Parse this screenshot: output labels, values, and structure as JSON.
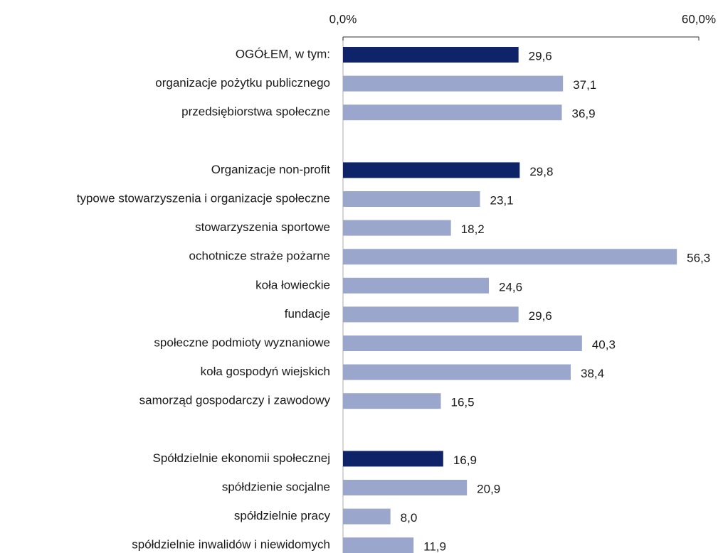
{
  "chart_data": {
    "type": "barh",
    "categories": [
      "OGÓŁEM, w tym:",
      "organizacje pożytku publicznego",
      "przedsiębiorstwa społeczne",
      null,
      "Organizacje non-profit",
      "typowe stowarzyszenia i organizacje społeczne",
      "stowarzyszenia sportowe",
      "ochotnicze straże pożarne",
      "koła łowieckie",
      "fundacje",
      "społeczne podmioty wyznaniowe",
      "koła gospodyń wiejskich",
      "samorząd gospodarczy i zawodowy",
      null,
      "Spółdzielnie ekonomii społecznej",
      "spółdzienie socjalne",
      "spółdzielnie pracy",
      "spółdzielnie inwalidów i niewidomych"
    ],
    "values": [
      29.6,
      37.1,
      36.9,
      null,
      29.8,
      23.1,
      18.2,
      56.3,
      24.6,
      29.6,
      40.3,
      38.4,
      16.5,
      null,
      16.9,
      20.9,
      8.0,
      11.9
    ],
    "value_labels": [
      "29,6",
      "37,1",
      "36,9",
      null,
      "29,8",
      "23,1",
      "18,2",
      "56,3",
      "24,6",
      "29,6",
      "40,3",
      "38,4",
      "16,5",
      null,
      "16,9",
      "20,9",
      "8,0",
      "11,9"
    ],
    "colors": [
      "#0f2468",
      "#9ba6cc",
      "#9ba6cc",
      null,
      "#0f2468",
      "#9ba6cc",
      "#9ba6cc",
      "#9ba6cc",
      "#9ba6cc",
      "#9ba6cc",
      "#9ba6cc",
      "#9ba6cc",
      "#9ba6cc",
      null,
      "#0f2468",
      "#9ba6cc",
      "#9ba6cc",
      "#9ba6cc"
    ],
    "xlim": [
      0,
      60
    ],
    "xticks": [
      {
        "value": 0,
        "label": "0,0%"
      },
      {
        "value": 60,
        "label": "60,0%"
      }
    ]
  }
}
